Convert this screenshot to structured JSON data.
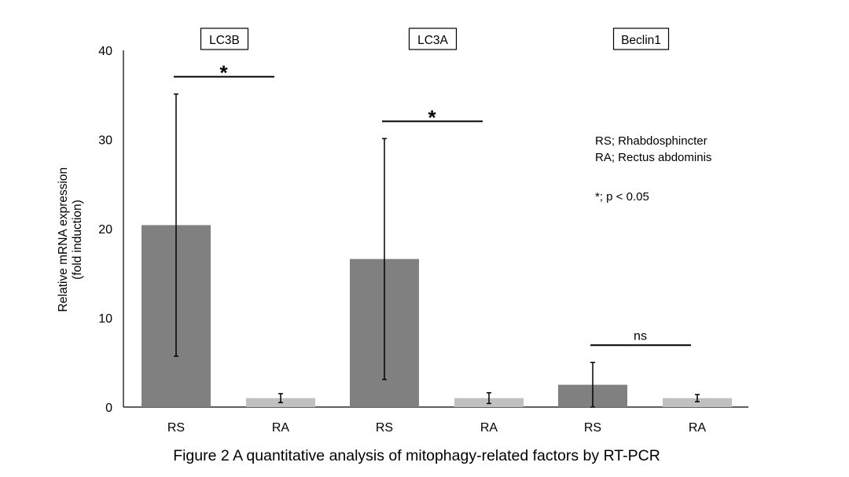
{
  "chart_data": {
    "type": "bar",
    "title": "Figure 2  A quantitative analysis of mitophagy-related factors by RT-PCR",
    "ylabel_lines": [
      "Relative mRNA expression",
      "(fold induction)"
    ],
    "xlabel": "",
    "ylim": [
      0,
      40
    ],
    "yticks": [
      0,
      10,
      20,
      30,
      40
    ],
    "grid": false,
    "colors": {
      "RS": "#808080",
      "RA": "#c0c0c0"
    },
    "groups": [
      {
        "label": "LC3B",
        "bars": [
          {
            "category": "RS",
            "value": 20.4,
            "error": 14.7
          },
          {
            "category": "RA",
            "value": 1.0,
            "error": 0.5
          }
        ],
        "significance": "*"
      },
      {
        "label": "LC3A",
        "bars": [
          {
            "category": "RS",
            "value": 16.6,
            "error": 13.5
          },
          {
            "category": "RA",
            "value": 1.0,
            "error": 0.6
          }
        ],
        "significance": "*"
      },
      {
        "label": "Beclin1",
        "bars": [
          {
            "category": "RS",
            "value": 2.5,
            "error": 2.5
          },
          {
            "category": "RA",
            "value": 1.0,
            "error": 0.4
          }
        ],
        "significance": "ns"
      }
    ],
    "legend": {
      "placement": "top-right",
      "lines": [
        "RS; Rhabdosphincter",
        "RA; Rectus abdominis",
        "*; p < 0.05"
      ]
    }
  }
}
